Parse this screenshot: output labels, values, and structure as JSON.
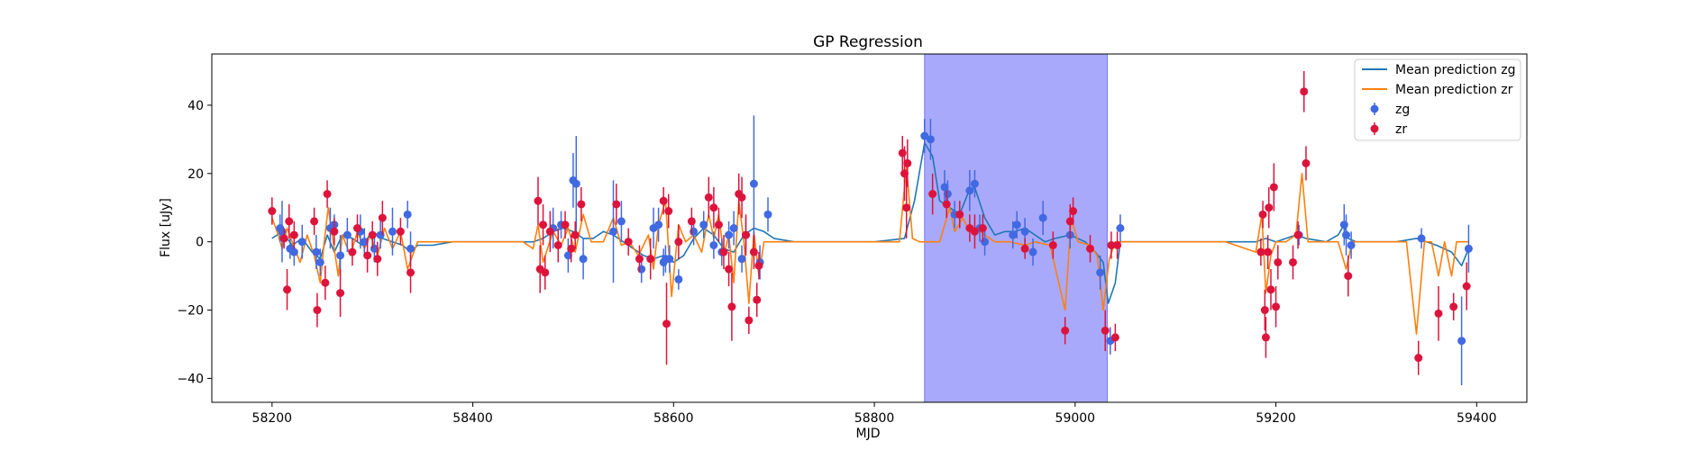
{
  "chart_data": {
    "type": "scatter",
    "title": "GP Regression",
    "xlabel": "MJD",
    "ylabel": "Flux [uJy]",
    "xlim": [
      58140,
      59450
    ],
    "ylim": [
      -47,
      55
    ],
    "xticks": [
      58200,
      58400,
      58600,
      58800,
      59000,
      59200,
      59400
    ],
    "yticks": [
      -40,
      -20,
      0,
      20,
      40
    ],
    "x_tick_labels": [
      "58200",
      "58400",
      "58600",
      "58800",
      "59000",
      "59200",
      "59400"
    ],
    "y_tick_labels": [
      "−40",
      "−20",
      "0",
      "20",
      "40"
    ],
    "grid": false,
    "legend_position": "top-right",
    "shaded_region": {
      "x0": 58850,
      "x1": 59032,
      "color": "#a9a9fb"
    },
    "colors": {
      "zg_line": "#1f77b4",
      "zr_line": "#ff7f0e",
      "zg_points": "#4169e1",
      "zr_points": "#dc143c"
    },
    "legend": [
      "Mean prediction zg",
      "Mean prediction zr",
      "zg",
      "zr"
    ],
    "mean_zg": [
      [
        58200,
        1
      ],
      [
        58210,
        3
      ],
      [
        58220,
        -1
      ],
      [
        58230,
        1
      ],
      [
        58240,
        -3
      ],
      [
        58248,
        -5
      ],
      [
        58255,
        2
      ],
      [
        58262,
        -3
      ],
      [
        58270,
        2
      ],
      [
        58280,
        1
      ],
      [
        58290,
        -1
      ],
      [
        58300,
        3
      ],
      [
        58310,
        1
      ],
      [
        58320,
        0
      ],
      [
        58330,
        -1
      ],
      [
        58338,
        -3
      ],
      [
        58345,
        -1
      ],
      [
        58360,
        -1
      ],
      [
        58380,
        0
      ],
      [
        58400,
        0
      ],
      [
        58440,
        0
      ],
      [
        58460,
        0
      ],
      [
        58470,
        1
      ],
      [
        58480,
        3
      ],
      [
        58490,
        4
      ],
      [
        58500,
        3
      ],
      [
        58510,
        1
      ],
      [
        58520,
        1
      ],
      [
        58530,
        3
      ],
      [
        58540,
        2
      ],
      [
        58550,
        0
      ],
      [
        58560,
        -2
      ],
      [
        58570,
        -4
      ],
      [
        58580,
        -5
      ],
      [
        58590,
        -4
      ],
      [
        58600,
        -6
      ],
      [
        58610,
        -4
      ],
      [
        58620,
        1
      ],
      [
        58630,
        4
      ],
      [
        58640,
        2
      ],
      [
        58650,
        -2
      ],
      [
        58660,
        -3
      ],
      [
        58670,
        2
      ],
      [
        58680,
        4
      ],
      [
        58690,
        3
      ],
      [
        58700,
        1
      ],
      [
        58720,
        0
      ],
      [
        58750,
        0
      ],
      [
        58800,
        0
      ],
      [
        58830,
        1
      ],
      [
        58840,
        12
      ],
      [
        58850,
        29
      ],
      [
        58858,
        25
      ],
      [
        58865,
        12
      ],
      [
        58875,
        10
      ],
      [
        58885,
        8
      ],
      [
        58893,
        14
      ],
      [
        58900,
        16
      ],
      [
        58910,
        7
      ],
      [
        58920,
        2
      ],
      [
        58930,
        3
      ],
      [
        58940,
        3
      ],
      [
        58950,
        4
      ],
      [
        58960,
        2
      ],
      [
        58970,
        0
      ],
      [
        58980,
        1
      ],
      [
        58995,
        2
      ],
      [
        59010,
        0
      ],
      [
        59020,
        -3
      ],
      [
        59028,
        -6
      ],
      [
        59033,
        -18
      ],
      [
        59040,
        -12
      ],
      [
        59045,
        0
      ],
      [
        59060,
        0
      ],
      [
        59100,
        0
      ],
      [
        59150,
        0
      ],
      [
        59180,
        0
      ],
      [
        59190,
        1
      ],
      [
        59200,
        0
      ],
      [
        59210,
        1
      ],
      [
        59220,
        2
      ],
      [
        59230,
        1
      ],
      [
        59250,
        0
      ],
      [
        59262,
        2
      ],
      [
        59268,
        5
      ],
      [
        59272,
        1
      ],
      [
        59280,
        0
      ],
      [
        59300,
        0
      ],
      [
        59320,
        0
      ],
      [
        59340,
        1
      ],
      [
        59360,
        -1
      ],
      [
        59375,
        -3
      ],
      [
        59385,
        -7
      ],
      [
        59392,
        -2
      ]
    ],
    "mean_zr": [
      [
        58200,
        7
      ],
      [
        58205,
        3
      ],
      [
        58210,
        -2
      ],
      [
        58215,
        4
      ],
      [
        58220,
        0
      ],
      [
        58228,
        -6
      ],
      [
        58235,
        2
      ],
      [
        58242,
        -4
      ],
      [
        58248,
        -12
      ],
      [
        58252,
        0
      ],
      [
        58256,
        10
      ],
      [
        58260,
        2
      ],
      [
        58266,
        -10
      ],
      [
        58270,
        2
      ],
      [
        58278,
        -4
      ],
      [
        58285,
        3
      ],
      [
        58292,
        -2
      ],
      [
        58298,
        2
      ],
      [
        58305,
        -4
      ],
      [
        58312,
        4
      ],
      [
        58320,
        -2
      ],
      [
        58328,
        3
      ],
      [
        58335,
        -8
      ],
      [
        58345,
        0
      ],
      [
        58360,
        0
      ],
      [
        58400,
        0
      ],
      [
        58450,
        0
      ],
      [
        58460,
        -2
      ],
      [
        58465,
        5
      ],
      [
        58470,
        -6
      ],
      [
        58480,
        3
      ],
      [
        58488,
        -1
      ],
      [
        58495,
        4
      ],
      [
        58502,
        -3
      ],
      [
        58510,
        8
      ],
      [
        58518,
        0
      ],
      [
        58530,
        0
      ],
      [
        58540,
        7
      ],
      [
        58548,
        -1
      ],
      [
        58556,
        0
      ],
      [
        58565,
        -4
      ],
      [
        58575,
        2
      ],
      [
        58580,
        -8
      ],
      [
        58585,
        5
      ],
      [
        58592,
        12
      ],
      [
        58598,
        -16
      ],
      [
        58605,
        5
      ],
      [
        58612,
        0
      ],
      [
        58620,
        2
      ],
      [
        58628,
        -3
      ],
      [
        58635,
        8
      ],
      [
        58640,
        1
      ],
      [
        58645,
        8
      ],
      [
        58650,
        -4
      ],
      [
        58655,
        2
      ],
      [
        58660,
        -12
      ],
      [
        58665,
        12
      ],
      [
        58670,
        0
      ],
      [
        58675,
        -18
      ],
      [
        58680,
        3
      ],
      [
        58685,
        -10
      ],
      [
        58690,
        0
      ],
      [
        58700,
        0
      ],
      [
        58750,
        0
      ],
      [
        58800,
        0
      ],
      [
        58825,
        0
      ],
      [
        58832,
        22
      ],
      [
        58838,
        1
      ],
      [
        58845,
        0
      ],
      [
        58855,
        0
      ],
      [
        58865,
        0
      ],
      [
        58875,
        10
      ],
      [
        58880,
        3
      ],
      [
        58888,
        7
      ],
      [
        58895,
        3
      ],
      [
        58902,
        4
      ],
      [
        58910,
        2
      ],
      [
        58920,
        0
      ],
      [
        58935,
        0
      ],
      [
        58950,
        -1
      ],
      [
        58960,
        0
      ],
      [
        58975,
        -1
      ],
      [
        58990,
        -20
      ],
      [
        58996,
        7
      ],
      [
        59003,
        0
      ],
      [
        59015,
        -1
      ],
      [
        59022,
        -4
      ],
      [
        59028,
        -20
      ],
      [
        59034,
        -5
      ],
      [
        59040,
        0
      ],
      [
        59060,
        0
      ],
      [
        59100,
        0
      ],
      [
        59150,
        0
      ],
      [
        59180,
        -3
      ],
      [
        59186,
        8
      ],
      [
        59190,
        -15
      ],
      [
        59195,
        -4
      ],
      [
        59200,
        0
      ],
      [
        59210,
        0
      ],
      [
        59220,
        2
      ],
      [
        59226,
        20
      ],
      [
        59232,
        0
      ],
      [
        59240,
        0
      ],
      [
        59262,
        0
      ],
      [
        59270,
        -8
      ],
      [
        59276,
        0
      ],
      [
        59300,
        0
      ],
      [
        59330,
        0
      ],
      [
        59340,
        -27
      ],
      [
        59348,
        0
      ],
      [
        59355,
        0
      ],
      [
        59362,
        -10
      ],
      [
        59368,
        0
      ],
      [
        59375,
        -10
      ],
      [
        59380,
        0
      ],
      [
        59392,
        0
      ]
    ],
    "points_zg": [
      [
        58208,
        4,
        4
      ],
      [
        58210,
        3,
        9
      ],
      [
        58218,
        -2,
        3
      ],
      [
        58222,
        -3,
        4
      ],
      [
        58230,
        0,
        5
      ],
      [
        58244,
        -3,
        5
      ],
      [
        58248,
        -6,
        4
      ],
      [
        58258,
        4,
        6
      ],
      [
        58262,
        5,
        3
      ],
      [
        58268,
        -4,
        6
      ],
      [
        58275,
        2,
        5
      ],
      [
        58288,
        3,
        5
      ],
      [
        58292,
        0,
        4
      ],
      [
        58302,
        -2,
        4
      ],
      [
        58308,
        2,
        4
      ],
      [
        58320,
        3,
        7
      ],
      [
        58335,
        8,
        4
      ],
      [
        58338,
        -2,
        5
      ],
      [
        58480,
        4,
        6
      ],
      [
        58488,
        5,
        4
      ],
      [
        58495,
        -4,
        5
      ],
      [
        58500,
        18,
        8
      ],
      [
        58503,
        17,
        14
      ],
      [
        58510,
        -5,
        6
      ],
      [
        58540,
        3,
        15
      ],
      [
        58548,
        6,
        6
      ],
      [
        58568,
        -8,
        4
      ],
      [
        58580,
        4,
        6
      ],
      [
        58585,
        5,
        5
      ],
      [
        58590,
        -6,
        4
      ],
      [
        58592,
        -5,
        4
      ],
      [
        58596,
        -5,
        4
      ],
      [
        58605,
        -11,
        3
      ],
      [
        58620,
        3,
        4
      ],
      [
        58630,
        5,
        4
      ],
      [
        58640,
        -1,
        4
      ],
      [
        58648,
        -3,
        4
      ],
      [
        58655,
        2,
        4
      ],
      [
        58660,
        4,
        5
      ],
      [
        58668,
        -5,
        4
      ],
      [
        58672,
        2,
        5
      ],
      [
        58680,
        17,
        20
      ],
      [
        58686,
        -6,
        5
      ],
      [
        58694,
        8,
        5
      ],
      [
        58850,
        31,
        5
      ],
      [
        58856,
        30,
        6
      ],
      [
        58870,
        16,
        5
      ],
      [
        58873,
        14,
        4
      ],
      [
        58880,
        8,
        4
      ],
      [
        58895,
        15,
        6
      ],
      [
        58900,
        17,
        4
      ],
      [
        58905,
        4,
        4
      ],
      [
        58910,
        0,
        4
      ],
      [
        58938,
        2,
        4
      ],
      [
        58942,
        5,
        4
      ],
      [
        58950,
        3,
        4
      ],
      [
        58958,
        -3,
        4
      ],
      [
        58968,
        7,
        5
      ],
      [
        58995,
        2,
        4
      ],
      [
        59025,
        -9,
        5
      ],
      [
        59035,
        -29,
        4
      ],
      [
        59045,
        4,
        4
      ],
      [
        59223,
        2,
        3
      ],
      [
        59268,
        5,
        6
      ],
      [
        59270,
        2,
        6
      ],
      [
        59275,
        -1,
        4
      ],
      [
        59345,
        1,
        3
      ],
      [
        59385,
        -29,
        13
      ],
      [
        59392,
        -2,
        7
      ]
    ],
    "points_zr": [
      [
        58200,
        9,
        4
      ],
      [
        58212,
        1,
        3
      ],
      [
        58215,
        -14,
        6
      ],
      [
        58217,
        6,
        5
      ],
      [
        58222,
        2,
        4
      ],
      [
        58242,
        6,
        4
      ],
      [
        58245,
        -20,
        5
      ],
      [
        58253,
        -12,
        5
      ],
      [
        58255,
        14,
        4
      ],
      [
        58262,
        3,
        4
      ],
      [
        58268,
        -15,
        7
      ],
      [
        58280,
        -3,
        4
      ],
      [
        58285,
        4,
        4
      ],
      [
        58295,
        -4,
        5
      ],
      [
        58300,
        2,
        4
      ],
      [
        58305,
        -5,
        5
      ],
      [
        58310,
        7,
        5
      ],
      [
        58328,
        3,
        4
      ],
      [
        58338,
        -9,
        6
      ],
      [
        58465,
        12,
        7
      ],
      [
        58467,
        -8,
        7
      ],
      [
        58470,
        5,
        6
      ],
      [
        58472,
        -9,
        5
      ],
      [
        58477,
        3,
        6
      ],
      [
        58485,
        -1,
        5
      ],
      [
        58492,
        5,
        4
      ],
      [
        58498,
        -2,
        4
      ],
      [
        58502,
        2,
        4
      ],
      [
        58508,
        11,
        5
      ],
      [
        58543,
        11,
        6
      ],
      [
        58555,
        0,
        4
      ],
      [
        58566,
        -5,
        4
      ],
      [
        58577,
        -5,
        6
      ],
      [
        58590,
        12,
        4
      ],
      [
        58593,
        -24,
        12
      ],
      [
        58595,
        9,
        5
      ],
      [
        58605,
        0,
        5
      ],
      [
        58618,
        6,
        4
      ],
      [
        58635,
        13,
        6
      ],
      [
        58640,
        10,
        6
      ],
      [
        58645,
        5,
        5
      ],
      [
        58650,
        -3,
        5
      ],
      [
        58655,
        -8,
        5
      ],
      [
        58658,
        -19,
        10
      ],
      [
        58665,
        14,
        6
      ],
      [
        58668,
        13,
        6
      ],
      [
        58672,
        2,
        6
      ],
      [
        58675,
        -23,
        4
      ],
      [
        58680,
        -3,
        5
      ],
      [
        58683,
        -17,
        5
      ],
      [
        58685,
        -7,
        4
      ],
      [
        58828,
        26,
        5
      ],
      [
        58830,
        20,
        8
      ],
      [
        58832,
        10,
        9
      ],
      [
        58833,
        23,
        7
      ],
      [
        58858,
        14,
        6
      ],
      [
        58872,
        11,
        4
      ],
      [
        58885,
        8,
        4
      ],
      [
        58895,
        4,
        4
      ],
      [
        58900,
        3,
        5
      ],
      [
        58908,
        4,
        4
      ],
      [
        58950,
        -2,
        3
      ],
      [
        58978,
        -1,
        4
      ],
      [
        58990,
        -26,
        4
      ],
      [
        58995,
        6,
        5
      ],
      [
        58998,
        9,
        4
      ],
      [
        59015,
        -2,
        4
      ],
      [
        59030,
        -26,
        6
      ],
      [
        59036,
        -1,
        4
      ],
      [
        59040,
        -28,
        4
      ],
      [
        59042,
        -1,
        4
      ],
      [
        59185,
        -3,
        4
      ],
      [
        59187,
        8,
        4
      ],
      [
        59189,
        -20,
        6
      ],
      [
        59190,
        -28,
        6
      ],
      [
        59192,
        -3,
        5
      ],
      [
        59193,
        10,
        6
      ],
      [
        59195,
        -14,
        6
      ],
      [
        59198,
        16,
        7
      ],
      [
        59200,
        -19,
        6
      ],
      [
        59202,
        -6,
        5
      ],
      [
        59217,
        -6,
        5
      ],
      [
        59222,
        2,
        4
      ],
      [
        59228,
        44,
        6
      ],
      [
        59230,
        23,
        5
      ],
      [
        59272,
        -10,
        6
      ],
      [
        59342,
        -34,
        5
      ],
      [
        59362,
        -21,
        8
      ],
      [
        59377,
        -19,
        4
      ],
      [
        59390,
        -13,
        7
      ]
    ]
  }
}
